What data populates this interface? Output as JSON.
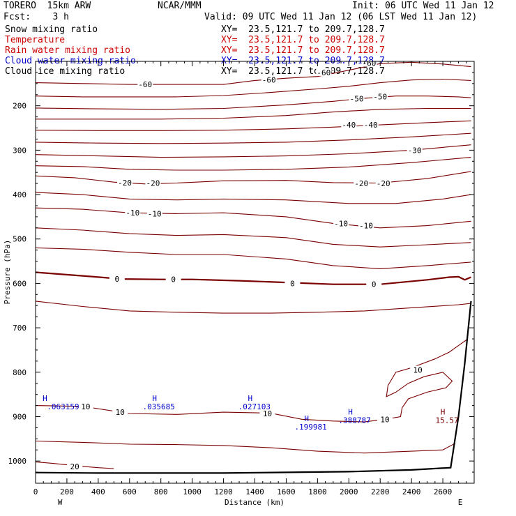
{
  "header": {
    "model": "TORERO  15km ARW",
    "center": "NCAR/MMM",
    "init": "Init: 06 UTC Wed 11 Jan 12",
    "fcst": "Fcst:    3 h",
    "valid": "Valid: 09 UTC Wed 11 Jan 12 (06 LST Wed 11 Jan 12)"
  },
  "fields": [
    {
      "label": "Snow mixing ratio",
      "xy": "XY=  23.5,121.7 to 209.7,128.7",
      "color": "#000000",
      "label_color": "#000000",
      "xy_color": "#000000"
    },
    {
      "label": "Temperature",
      "xy": "XY=  23.5,121.7 to 209.7,128.7",
      "color": "#7a0000",
      "label_color": "#cc0000",
      "xy_color": "#cc0000"
    },
    {
      "label": "Rain water mixing ratio",
      "xy": "XY=  23.5,121.7 to 209.7,128.7",
      "color": "#cc0000",
      "label_color": "#cc0000",
      "xy_color": "#cc0000"
    },
    {
      "label": "Cloud water mixing ratio",
      "xy": "XY=  23.5,121.7 to 209.7,128.7",
      "color": "#0000cc",
      "label_color": "#0000cc",
      "xy_color": "#0000cc"
    },
    {
      "label": "Cloud ice mixing ratio",
      "xy": "XY=  23.5,121.7 to 209.7,128.7",
      "color": "#000000",
      "label_color": "#000000",
      "xy_color": "#000000"
    }
  ],
  "chart_data": {
    "type": "line",
    "xlabel": "Distance (km)",
    "ylabel": "Pressure (hPa)",
    "xlim": [
      0,
      2800
    ],
    "ylim": [
      1050,
      100
    ],
    "x_ticks": [
      0,
      200,
      400,
      600,
      800,
      1000,
      1200,
      1400,
      1600,
      1800,
      2000,
      2200,
      2400,
      2600
    ],
    "y_ticks": [
      200,
      300,
      400,
      500,
      600,
      700,
      800,
      900,
      1000
    ],
    "x_end_labels": {
      "left": "W",
      "right": "E"
    },
    "colors": {
      "temperature": "#7a0000",
      "cloud_water": "#0000cc",
      "terrain": "#000000"
    },
    "terrain": [
      [
        0,
        1026
      ],
      [
        400,
        1027
      ],
      [
        1200,
        1027
      ],
      [
        2000,
        1024
      ],
      [
        2400,
        1020
      ],
      [
        2650,
        1015
      ],
      [
        2700,
        900
      ],
      [
        2740,
        780
      ],
      [
        2780,
        640
      ]
    ],
    "isotherms": [
      {
        "label": "-60",
        "bold": false,
        "points": [
          [
            0,
            148
          ],
          [
            300,
            150
          ],
          [
            600,
            152
          ],
          [
            900,
            152
          ],
          [
            1200,
            152
          ],
          [
            1400,
            143
          ],
          [
            1600,
            138
          ],
          [
            1800,
            134
          ],
          [
            2000,
            120
          ],
          [
            2200,
            105
          ],
          [
            2400,
            102
          ],
          [
            2600,
            106
          ],
          [
            2780,
            112
          ]
        ],
        "label_at": [
          [
            700,
            152
          ],
          [
            1490,
            142
          ],
          [
            1840,
            125
          ],
          [
            2130,
            104
          ]
        ]
      },
      {
        "label": "",
        "bold": false,
        "points": [
          [
            0,
            178
          ],
          [
            300,
            180
          ],
          [
            600,
            180
          ],
          [
            900,
            180
          ],
          [
            1200,
            177
          ],
          [
            1500,
            170
          ],
          [
            1800,
            162
          ],
          [
            2000,
            156
          ],
          [
            2200,
            148
          ],
          [
            2400,
            142
          ],
          [
            2600,
            140
          ],
          [
            2780,
            143
          ]
        ],
        "label_at": []
      },
      {
        "label": "-50",
        "bold": false,
        "points": [
          [
            0,
            205
          ],
          [
            400,
            207
          ],
          [
            800,
            208
          ],
          [
            1200,
            206
          ],
          [
            1600,
            198
          ],
          [
            1900,
            190
          ],
          [
            2100,
            183
          ],
          [
            2300,
            178
          ],
          [
            2500,
            178
          ],
          [
            2700,
            180
          ],
          [
            2780,
            182
          ]
        ],
        "label_at": [
          [
            2050,
            184
          ],
          [
            2200,
            179
          ]
        ]
      },
      {
        "label": "",
        "bold": false,
        "points": [
          [
            0,
            230
          ],
          [
            400,
            230
          ],
          [
            800,
            230
          ],
          [
            1200,
            228
          ],
          [
            1600,
            222
          ],
          [
            1900,
            214
          ],
          [
            2200,
            208
          ],
          [
            2500,
            206
          ],
          [
            2780,
            206
          ]
        ],
        "label_at": []
      },
      {
        "label": "-40",
        "bold": false,
        "points": [
          [
            0,
            255
          ],
          [
            400,
            256
          ],
          [
            800,
            256
          ],
          [
            1200,
            255
          ],
          [
            1600,
            252
          ],
          [
            1900,
            248
          ],
          [
            2200,
            243
          ],
          [
            2500,
            238
          ],
          [
            2780,
            234
          ]
        ],
        "label_at": [
          [
            2000,
            243
          ],
          [
            2140,
            243
          ]
        ]
      },
      {
        "label": "",
        "bold": false,
        "points": [
          [
            0,
            282
          ],
          [
            400,
            284
          ],
          [
            800,
            285
          ],
          [
            1200,
            284
          ],
          [
            1600,
            282
          ],
          [
            2000,
            277
          ],
          [
            2400,
            270
          ],
          [
            2780,
            262
          ]
        ],
        "label_at": []
      },
      {
        "label": "-30",
        "bold": false,
        "points": [
          [
            0,
            310
          ],
          [
            400,
            313
          ],
          [
            800,
            316
          ],
          [
            1200,
            315
          ],
          [
            1600,
            313
          ],
          [
            2000,
            308
          ],
          [
            2400,
            300
          ],
          [
            2780,
            288
          ]
        ],
        "label_at": [
          [
            2420,
            300
          ]
        ]
      },
      {
        "label": "",
        "bold": false,
        "points": [
          [
            0,
            335
          ],
          [
            300,
            337
          ],
          [
            600,
            343
          ],
          [
            900,
            345
          ],
          [
            1200,
            345
          ],
          [
            1600,
            343
          ],
          [
            2000,
            338
          ],
          [
            2400,
            328
          ],
          [
            2780,
            316
          ]
        ],
        "label_at": []
      },
      {
        "label": "-20",
        "bold": false,
        "points": [
          [
            0,
            358
          ],
          [
            250,
            362
          ],
          [
            500,
            372
          ],
          [
            700,
            376
          ],
          [
            900,
            374
          ],
          [
            1200,
            369
          ],
          [
            1600,
            368
          ],
          [
            1900,
            373
          ],
          [
            2200,
            374
          ],
          [
            2500,
            364
          ],
          [
            2780,
            348
          ]
        ],
        "label_at": [
          [
            570,
            373
          ],
          [
            750,
            374
          ],
          [
            2080,
            375
          ],
          [
            2220,
            375
          ]
        ]
      },
      {
        "label": "",
        "bold": false,
        "points": [
          [
            0,
            395
          ],
          [
            300,
            400
          ],
          [
            600,
            410
          ],
          [
            900,
            412
          ],
          [
            1200,
            410
          ],
          [
            1600,
            412
          ],
          [
            2000,
            420
          ],
          [
            2300,
            420
          ],
          [
            2600,
            410
          ],
          [
            2780,
            400
          ]
        ],
        "label_at": []
      },
      {
        "label": "-10",
        "bold": false,
        "points": [
          [
            0,
            430
          ],
          [
            300,
            433
          ],
          [
            600,
            441
          ],
          [
            900,
            443
          ],
          [
            1200,
            441
          ],
          [
            1600,
            450
          ],
          [
            1900,
            465
          ],
          [
            2200,
            475
          ],
          [
            2500,
            470
          ],
          [
            2780,
            460
          ]
        ],
        "label_at": [
          [
            620,
            441
          ],
          [
            760,
            443
          ],
          [
            1950,
            465
          ],
          [
            2110,
            470
          ]
        ]
      },
      {
        "label": "",
        "bold": false,
        "points": [
          [
            0,
            475
          ],
          [
            300,
            480
          ],
          [
            600,
            488
          ],
          [
            900,
            492
          ],
          [
            1200,
            490
          ],
          [
            1600,
            497
          ],
          [
            1900,
            512
          ],
          [
            2200,
            518
          ],
          [
            2500,
            513
          ],
          [
            2780,
            508
          ]
        ],
        "label_at": []
      },
      {
        "label": "",
        "bold": false,
        "points": [
          [
            0,
            520
          ],
          [
            300,
            523
          ],
          [
            600,
            530
          ],
          [
            900,
            535
          ],
          [
            1200,
            535
          ],
          [
            1600,
            545
          ],
          [
            1900,
            560
          ],
          [
            2200,
            567
          ],
          [
            2500,
            560
          ],
          [
            2780,
            552
          ]
        ],
        "label_at": []
      },
      {
        "label": "0",
        "bold": true,
        "points": [
          [
            0,
            575
          ],
          [
            300,
            583
          ],
          [
            550,
            590
          ],
          [
            800,
            591
          ],
          [
            1000,
            591
          ],
          [
            1300,
            594
          ],
          [
            1600,
            598
          ],
          [
            1900,
            602
          ],
          [
            2200,
            602
          ],
          [
            2500,
            592
          ],
          [
            2640,
            586
          ],
          [
            2700,
            585
          ],
          [
            2740,
            592
          ],
          [
            2780,
            586
          ]
        ],
        "label_at": [
          [
            520,
            590
          ],
          [
            880,
            591
          ],
          [
            1640,
            600
          ],
          [
            2160,
            602
          ]
        ]
      },
      {
        "label": "",
        "bold": false,
        "points": [
          [
            0,
            640
          ],
          [
            300,
            652
          ],
          [
            600,
            662
          ],
          [
            900,
            665
          ],
          [
            1200,
            667
          ],
          [
            1500,
            667
          ],
          [
            1800,
            665
          ],
          [
            2100,
            662
          ],
          [
            2400,
            655
          ],
          [
            2700,
            648
          ],
          [
            2780,
            645
          ]
        ],
        "label_at": []
      },
      {
        "label": "10",
        "bold": false,
        "points": [
          [
            0,
            875
          ],
          [
            300,
            877
          ],
          [
            600,
            893
          ],
          [
            900,
            895
          ],
          [
            1200,
            890
          ],
          [
            1500,
            892
          ],
          [
            1700,
            906
          ],
          [
            1900,
            910
          ],
          [
            2100,
            912
          ],
          [
            2250,
            905
          ],
          [
            2330,
            900
          ],
          [
            2340,
            880
          ],
          [
            2380,
            860
          ],
          [
            2500,
            845
          ],
          [
            2620,
            835
          ],
          [
            2660,
            820
          ],
          [
            2600,
            800
          ],
          [
            2480,
            810
          ],
          [
            2380,
            825
          ],
          [
            2300,
            845
          ],
          [
            2240,
            855
          ],
          [
            2250,
            830
          ],
          [
            2300,
            800
          ],
          [
            2400,
            790
          ],
          [
            2550,
            770
          ],
          [
            2640,
            755
          ],
          [
            2700,
            740
          ],
          [
            2760,
            725
          ]
        ],
        "label_at": [
          [
            320,
            877
          ],
          [
            540,
            890
          ],
          [
            1480,
            893
          ],
          [
            2230,
            906
          ],
          [
            2440,
            795
          ]
        ]
      },
      {
        "label": "",
        "bold": false,
        "points": [
          [
            0,
            955
          ],
          [
            300,
            958
          ],
          [
            600,
            962
          ],
          [
            900,
            963
          ],
          [
            1200,
            965
          ],
          [
            1500,
            970
          ],
          [
            1800,
            978
          ],
          [
            2100,
            982
          ],
          [
            2400,
            978
          ],
          [
            2600,
            975
          ],
          [
            2680,
            960
          ]
        ],
        "label_at": []
      },
      {
        "label": "20",
        "bold": false,
        "points": [
          [
            0,
            1002
          ],
          [
            100,
            1005
          ],
          [
            300,
            1012
          ],
          [
            400,
            1015
          ],
          [
            500,
            1017
          ]
        ],
        "label_at": [
          [
            250,
            1012
          ]
        ]
      }
    ],
    "annotations": [
      {
        "mark": "H",
        "value": ".063159",
        "x": 60,
        "p": 865,
        "color": "#0000cc"
      },
      {
        "mark": "H",
        "value": ".035685",
        "x": 760,
        "p": 865,
        "color": "#0000cc"
      },
      {
        "mark": "H",
        "value": ".027103",
        "x": 1370,
        "p": 865,
        "color": "#0000cc"
      },
      {
        "mark": "H",
        "value": ".199981",
        "x": 1730,
        "p": 910,
        "color": "#0000cc"
      },
      {
        "mark": "H",
        "value": ".388787",
        "x": 2010,
        "p": 895,
        "color": "#0000cc"
      },
      {
        "mark": "H",
        "value": "15.57",
        "x": 2600,
        "p": 895,
        "color": "#7a0000"
      }
    ]
  }
}
